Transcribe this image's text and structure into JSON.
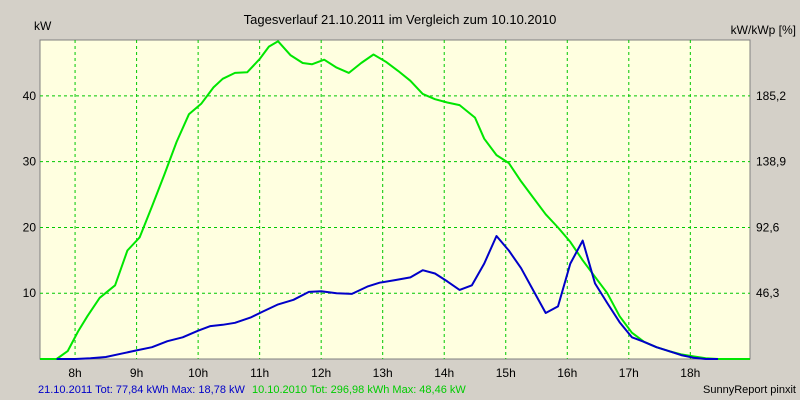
{
  "chart_data": {
    "type": "line",
    "title": "Tagesverlauf 21.10.2011 im Vergleich zum 10.10.2010",
    "y_left_label": "kW",
    "y_right_label": "kW/kWp [%]",
    "xlim": [
      7.43,
      18.97
    ],
    "ylim": [
      0,
      48.5
    ],
    "x_ticks": [
      8,
      9,
      10,
      11,
      12,
      13,
      14,
      15,
      16,
      17,
      18
    ],
    "x_tick_labels": [
      "8h",
      "9h",
      "10h",
      "11h",
      "12h",
      "13h",
      "14h",
      "15h",
      "16h",
      "17h",
      "18h"
    ],
    "y_left_ticks": [
      10,
      20,
      30,
      40
    ],
    "y_left_tick_labels": [
      "10",
      "20",
      "30",
      "40"
    ],
    "y_right_tick_labels": [
      "46,3",
      "92,6",
      "138,9",
      "185,2"
    ],
    "grid": true,
    "colors": {
      "background": "#d4d0c8",
      "plot": "#ffffe0",
      "grid": "#00c800",
      "green_series": "#00e600",
      "blue_series": "#0000c8"
    },
    "series": [
      {
        "name": "10.10.2010",
        "color": "#00e600",
        "x": [
          7.43,
          7.7,
          7.88,
          8.05,
          8.2,
          8.4,
          8.65,
          8.85,
          9.05,
          9.25,
          9.45,
          9.65,
          9.85,
          10.05,
          10.25,
          10.4,
          10.6,
          10.8,
          11.0,
          11.15,
          11.3,
          11.5,
          11.7,
          11.85,
          12.05,
          12.25,
          12.45,
          12.65,
          12.85,
          13.05,
          13.25,
          13.45,
          13.65,
          13.85,
          14.05,
          14.25,
          14.5,
          14.65,
          14.85,
          15.05,
          15.25,
          15.45,
          15.65,
          15.85,
          16.05,
          16.25,
          16.45,
          16.65,
          16.85,
          17.05,
          17.25,
          17.45,
          17.65,
          17.85,
          18.05,
          18.25,
          18.45,
          18.65,
          18.97
        ],
        "y": [
          0,
          0,
          1.2,
          4.2,
          6.5,
          9.3,
          11.2,
          16.5,
          18.5,
          23.2,
          28.0,
          33.0,
          37.2,
          38.8,
          41.3,
          42.6,
          43.5,
          43.6,
          45.6,
          47.5,
          48.3,
          46.2,
          45.0,
          44.8,
          45.5,
          44.3,
          43.5,
          45.0,
          46.3,
          45.2,
          43.8,
          42.3,
          40.3,
          39.5,
          39.0,
          38.6,
          36.7,
          33.5,
          31.0,
          29.8,
          27.0,
          24.5,
          22.0,
          20.0,
          17.8,
          15.0,
          12.5,
          10.0,
          6.5,
          4.0,
          2.6,
          1.8,
          1.2,
          0.7,
          0.4,
          0.1,
          0,
          0,
          0
        ]
      },
      {
        "name": "21.10.2011",
        "color": "#0000c8",
        "x": [
          7.7,
          8.0,
          8.25,
          8.5,
          8.75,
          9.0,
          9.25,
          9.5,
          9.75,
          10.0,
          10.2,
          10.4,
          10.6,
          10.85,
          11.05,
          11.3,
          11.55,
          11.8,
          12.0,
          12.25,
          12.5,
          12.75,
          12.95,
          13.2,
          13.45,
          13.65,
          13.85,
          14.05,
          14.25,
          14.45,
          14.65,
          14.85,
          15.05,
          15.25,
          15.45,
          15.65,
          15.85,
          16.05,
          16.25,
          16.45,
          16.65,
          16.85,
          17.05,
          17.25,
          17.45,
          17.65,
          17.85,
          18.05,
          18.25,
          18.45
        ],
        "y": [
          0,
          0,
          0.1,
          0.3,
          0.8,
          1.3,
          1.8,
          2.7,
          3.3,
          4.3,
          5.0,
          5.2,
          5.5,
          6.3,
          7.2,
          8.3,
          9.0,
          10.2,
          10.3,
          10.0,
          9.9,
          11.0,
          11.6,
          12.0,
          12.4,
          13.5,
          13.0,
          11.8,
          10.5,
          11.2,
          14.5,
          18.7,
          16.5,
          13.8,
          10.4,
          7.0,
          8.0,
          14.5,
          18.0,
          11.5,
          8.5,
          5.6,
          3.3,
          2.6,
          1.8,
          1.2,
          0.6,
          0.2,
          0,
          0
        ]
      }
    ]
  },
  "legend": {
    "series1_text": "21.10.2011 Tot: 77,84 kWh Max: 18,78 kW",
    "series2_text": "10.10.2010 Tot: 296,98 kWh Max: 48,46 kW"
  },
  "footer": {
    "credit": "SunnyReport pinxit"
  }
}
